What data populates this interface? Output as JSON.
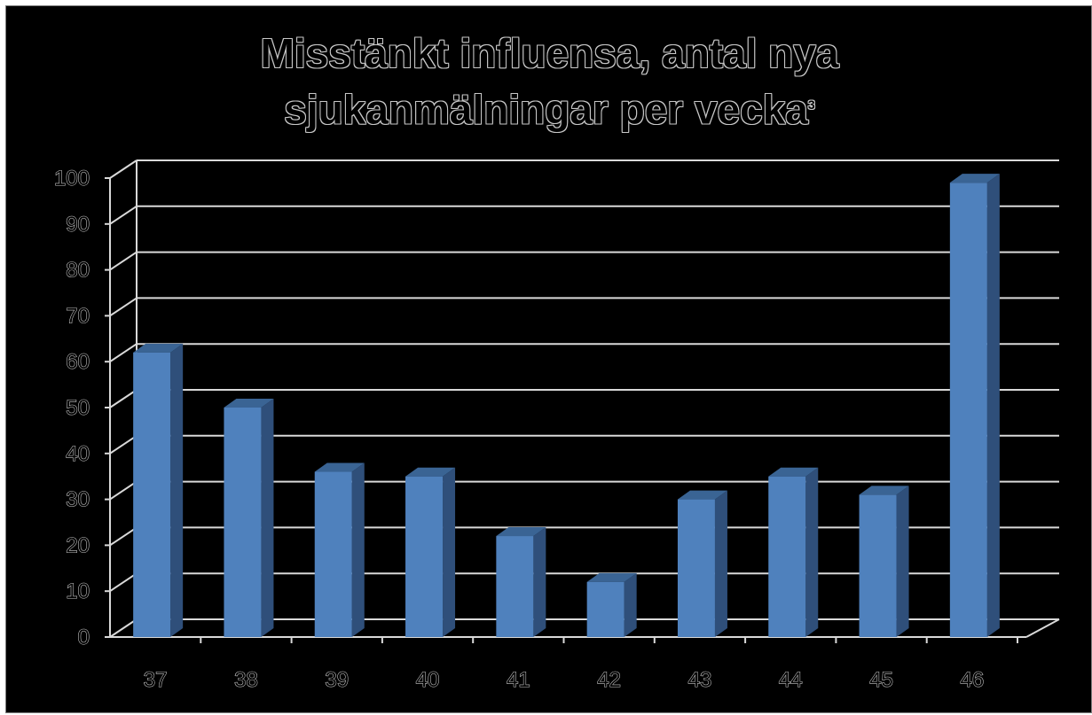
{
  "title": {
    "line1": "Misstänkt influensa, antal nya",
    "line2": "sjukanmälningar per vecka",
    "superscript": "3"
  },
  "chart_data": {
    "type": "bar",
    "title": "Misstänkt influensa, antal nya sjukanmälningar per vecka3",
    "xlabel": "",
    "ylabel": "",
    "categories": [
      "37",
      "38",
      "39",
      "40",
      "41",
      "42",
      "43",
      "44",
      "45",
      "46"
    ],
    "values": [
      62,
      50,
      36,
      35,
      22,
      12,
      30,
      35,
      31,
      99
    ],
    "ylim": [
      0,
      100
    ],
    "yticks": [
      "0",
      "10",
      "20",
      "30",
      "40",
      "50",
      "60",
      "70",
      "80",
      "90",
      "100"
    ],
    "grid": true,
    "style": "3d-column",
    "colors": {
      "bar_front": "#4f81bd",
      "bar_side": "#2f4f7a",
      "bar_top": "#3a6494",
      "grid": "#d9d9d9",
      "background": "#000000"
    }
  }
}
